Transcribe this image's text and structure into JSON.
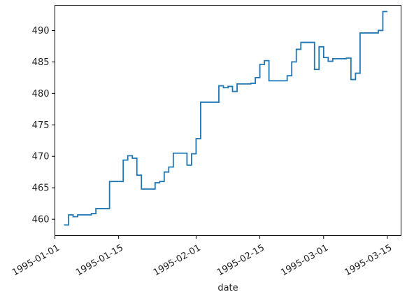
{
  "chart_data": {
    "type": "line",
    "drawstyle": "steps-post",
    "xlabel": "date",
    "ylabel": "",
    "title": "",
    "grid": false,
    "legend": "none",
    "xlim": [
      "1995-01-01",
      "1995-03-18"
    ],
    "ylim": [
      457.4,
      494.0
    ],
    "x_ticks": [
      "1995-01-01",
      "1995-01-15",
      "1995-02-01",
      "1995-02-15",
      "1995-03-01",
      "1995-03-15"
    ],
    "y_ticks": [
      460,
      465,
      470,
      475,
      480,
      485,
      490
    ],
    "line_color": "#1f77b4",
    "series": [
      {
        "x": [
          "1995-01-03",
          "1995-01-04",
          "1995-01-05",
          "1995-01-06",
          "1995-01-09",
          "1995-01-10",
          "1995-01-13",
          "1995-01-16",
          "1995-01-17",
          "1995-01-18",
          "1995-01-19",
          "1995-01-20",
          "1995-01-23",
          "1995-01-24",
          "1995-01-25",
          "1995-01-26",
          "1995-01-27",
          "1995-01-30",
          "1995-01-31",
          "1995-02-01",
          "1995-02-02",
          "1995-02-03",
          "1995-02-06",
          "1995-02-07",
          "1995-02-08",
          "1995-02-09",
          "1995-02-10",
          "1995-02-13",
          "1995-02-14",
          "1995-02-15",
          "1995-02-16",
          "1995-02-17",
          "1995-02-21",
          "1995-02-22",
          "1995-02-23",
          "1995-02-24",
          "1995-02-27",
          "1995-02-28",
          "1995-03-01",
          "1995-03-02",
          "1995-03-03",
          "1995-03-06",
          "1995-03-07",
          "1995-03-08",
          "1995-03-09",
          "1995-03-10",
          "1995-03-13",
          "1995-03-14",
          "1995-03-15"
        ],
        "values": [
          459.1,
          460.7,
          460.4,
          460.7,
          460.9,
          461.7,
          466.0,
          469.4,
          470.1,
          469.7,
          467.0,
          464.8,
          465.8,
          466.0,
          467.5,
          468.3,
          470.5,
          468.6,
          470.4,
          472.8,
          478.6,
          478.6,
          481.2,
          480.9,
          481.1,
          480.3,
          481.5,
          481.6,
          482.5,
          484.6,
          485.2,
          482.0,
          482.8,
          485.0,
          487.0,
          488.1,
          483.8,
          487.4,
          485.7,
          485.1,
          485.5,
          485.6,
          482.2,
          483.2,
          489.6,
          489.6,
          490.0,
          493.0,
          493.0
        ]
      }
    ]
  }
}
